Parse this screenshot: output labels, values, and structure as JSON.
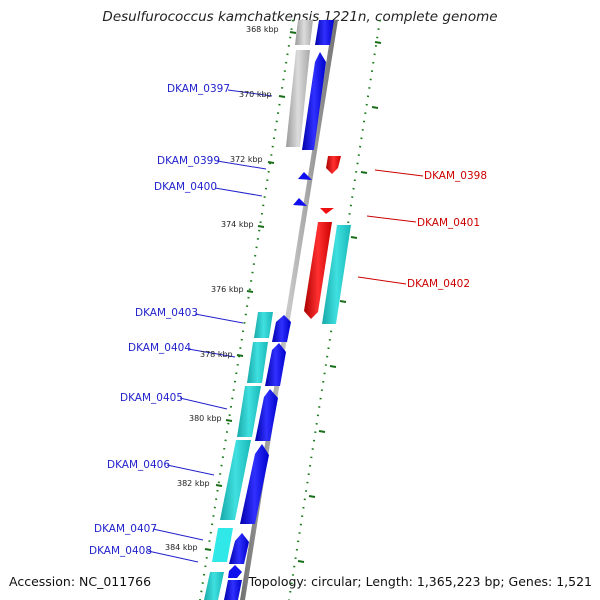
{
  "title": "Desulfurococcus kamchatkensis 1221n, complete genome",
  "footer": {
    "accession": "Accession: NC_011766",
    "topology": "Topology: circular; Length: 1,365,223 bp; Genes: 1,521"
  },
  "colors": {
    "forward_cds": "#0000ee",
    "reverse_cds": "#ee0000",
    "forward_label": "#2222cc",
    "reverse_label": "#cc0000",
    "rna_track": "#20c8c8",
    "ruler_tick": "#1a6e1a",
    "backbone": "#888888"
  },
  "ticks": [
    {
      "label": "368 kbp"
    },
    {
      "label": "370 kbp"
    },
    {
      "label": "372 kbp"
    },
    {
      "label": "374 kbp"
    },
    {
      "label": "376 kbp"
    },
    {
      "label": "378 kbp"
    },
    {
      "label": "380 kbp"
    },
    {
      "label": "382 kbp"
    },
    {
      "label": "384 kbp"
    }
  ],
  "genes_forward": [
    {
      "label": "DKAM_0397"
    },
    {
      "label": "DKAM_0399"
    },
    {
      "label": "DKAM_0400"
    },
    {
      "label": "DKAM_0403"
    },
    {
      "label": "DKAM_0404"
    },
    {
      "label": "DKAM_0405"
    },
    {
      "label": "DKAM_0406"
    },
    {
      "label": "DKAM_0407"
    },
    {
      "label": "DKAM_0408"
    }
  ],
  "genes_reverse": [
    {
      "label": "DKAM_0398"
    },
    {
      "label": "DKAM_0401"
    },
    {
      "label": "DKAM_0402"
    }
  ]
}
